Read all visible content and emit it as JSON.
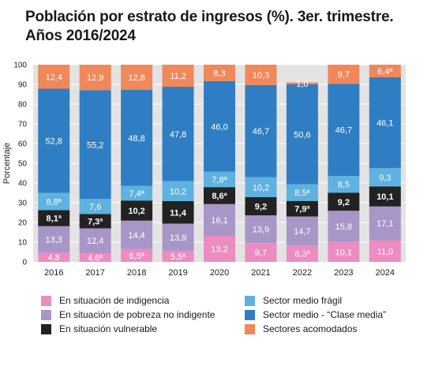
{
  "title": {
    "line1": "Población por estrato de ingresos (%). 3er. trimestre.",
    "line2": "Años 2016/2024"
  },
  "chart_data": {
    "type": "bar",
    "stacked": true,
    "categories": [
      "2016",
      "2017",
      "2018",
      "2019",
      "2020",
      "2021",
      "2022",
      "2023",
      "2024"
    ],
    "ylabel": "Porcentaje",
    "ylim": [
      0,
      100
    ],
    "yticks": [
      0,
      10,
      20,
      30,
      40,
      50,
      60,
      70,
      80,
      90,
      100
    ],
    "grid": true,
    "legend_position": "bottom",
    "series": [
      {
        "name": "En situación de indigencia",
        "color": "#ec8cc0",
        "values": [
          4.8,
          4.6,
          6.5,
          5.5,
          13.2,
          9.7,
          8.3,
          10.1,
          11.0
        ],
        "labels": [
          "4,8",
          "4,6ª",
          "6,5ª",
          "5,5ª",
          "13,2",
          "9,7",
          "8,3ª",
          "10,1",
          "11,0"
        ]
      },
      {
        "name": "En situación de pobreza no indigente",
        "color": "#a896c8",
        "values": [
          13.3,
          12.4,
          14.4,
          13.9,
          16.1,
          13.9,
          14.7,
          15.8,
          17.1
        ],
        "labels": [
          "13,3",
          "12,4",
          "14,4",
          "13,9",
          "16,1",
          "13,9",
          "14,7",
          "15,8",
          "17,1"
        ]
      },
      {
        "name": "En situación vulnerable",
        "color": "#222222",
        "values": [
          8.1,
          7.3,
          10.2,
          11.4,
          8.6,
          9.2,
          7.9,
          9.2,
          10.1
        ],
        "labels": [
          "8,1ª",
          "7,3ª",
          "10,2",
          "11,4",
          "8,6ª",
          "9,2",
          "7,9ª",
          "9,2",
          "10,1"
        ]
      },
      {
        "name": "Sector medio frágil",
        "color": "#5fb1e0",
        "values": [
          8.8,
          7.6,
          7.4,
          10.2,
          7.8,
          10.2,
          8.5,
          8.5,
          9.3
        ],
        "labels": [
          "8,8ª",
          "7,6",
          "7,4ª",
          "10,2",
          "7,8ª",
          "10,2",
          "8,5ª",
          "8,5",
          "9,3"
        ]
      },
      {
        "name": "Sector medio - “Clase media”",
        "color": "#2f7ec3",
        "values": [
          52.8,
          55.2,
          48.8,
          47.8,
          46.0,
          46.7,
          50.6,
          46.7,
          46.1
        ],
        "labels": [
          "52,8",
          "55,2",
          "48,8",
          "47,8",
          "46,0",
          "46,7",
          "50,6",
          "46,7",
          "46,1"
        ]
      },
      {
        "name": "Sectores acomodados",
        "color": "#f0885a",
        "values": [
          12.4,
          12.9,
          12.8,
          11.2,
          8.3,
          10.3,
          1.0,
          9.7,
          6.4
        ],
        "labels": [
          "12,4",
          "12,9",
          "12,8",
          "11,2",
          "8,3",
          "10,3",
          "1,0",
          "9,7",
          "6,4ª"
        ]
      }
    ]
  }
}
